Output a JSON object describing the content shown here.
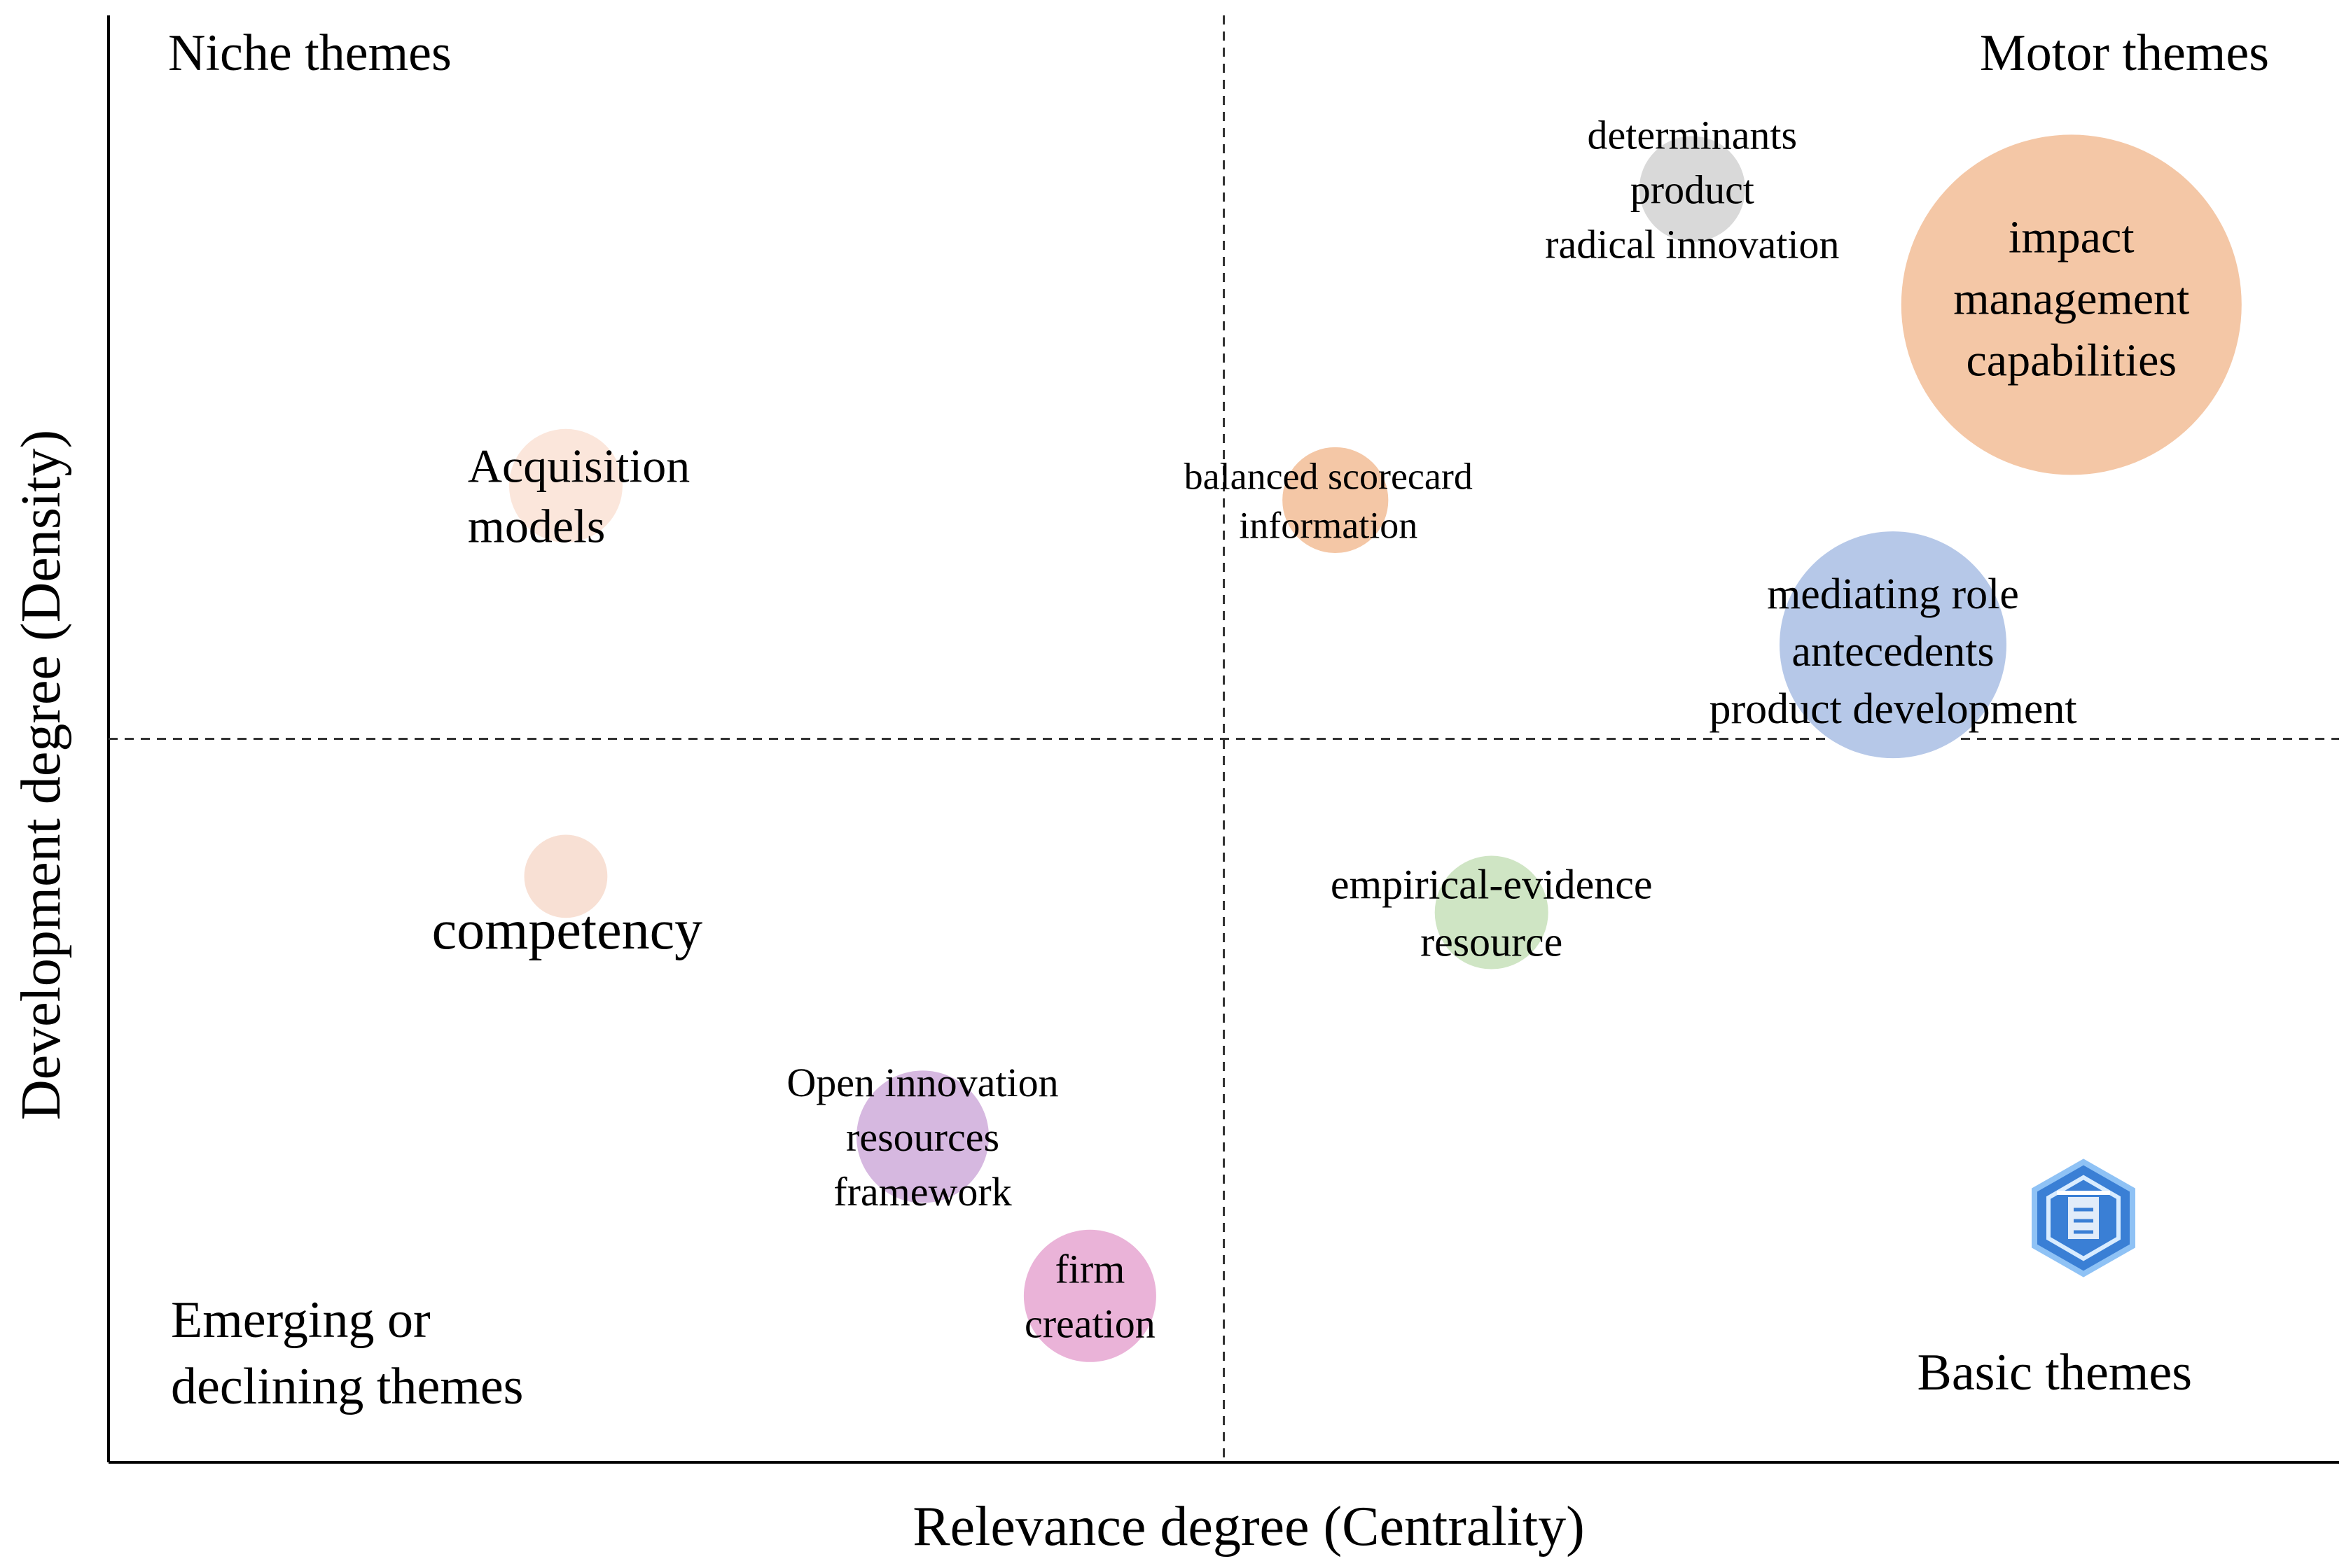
{
  "chart_data": {
    "type": "scatter",
    "title": "",
    "xlabel": "Relevance degree (Centrality)",
    "ylabel": "Development degree (Density)",
    "xlim": [
      0,
      100
    ],
    "ylim": [
      0,
      100
    ],
    "quadrant_divider": {
      "x": 50,
      "y": 50
    },
    "quadrants": [
      {
        "name": "Niche themes",
        "placement": "top-left"
      },
      {
        "name": "Motor themes",
        "placement": "top-right"
      },
      {
        "name": "Emerging or declining themes",
        "lines": [
          "Emerging or",
          "declining themes"
        ],
        "placement": "bottom-left"
      },
      {
        "name": "Basic themes",
        "placement": "bottom-right"
      }
    ],
    "clusters": [
      {
        "id": "determinants",
        "labels": [
          "determinants",
          "product",
          "radical innovation"
        ],
        "x": 71,
        "y": 88,
        "size": 2.8,
        "color": "#d9d9d9"
      },
      {
        "id": "impact",
        "labels": [
          "impact",
          "management",
          "capabilities"
        ],
        "x": 88,
        "y": 80,
        "size": 9,
        "color": "#f4c7a6"
      },
      {
        "id": "acquisition",
        "labels": [
          "Acquisition",
          "models"
        ],
        "x": 20.5,
        "y": 67.5,
        "size": 3,
        "color": "#fbe6db"
      },
      {
        "id": "balanced",
        "labels": [
          "balanced scorecard",
          "information"
        ],
        "x": 55,
        "y": 66.5,
        "size": 2.8,
        "color": "#f4c7a6"
      },
      {
        "id": "mediating",
        "labels": [
          "mediating role",
          "antecedents",
          "product development"
        ],
        "x": 80,
        "y": 56.5,
        "size": 6,
        "color": "#b6c8e8"
      },
      {
        "id": "competency",
        "labels": [
          "competency"
        ],
        "x": 20.5,
        "y": 40.5,
        "size": 2.2,
        "color": "#f8e0d4"
      },
      {
        "id": "empirical",
        "labels": [
          "empirical-evidence",
          "resource"
        ],
        "x": 62,
        "y": 38,
        "size": 3,
        "color": "#cfe5c4"
      },
      {
        "id": "open-innovation",
        "labels": [
          "Open innovation",
          "resources",
          "framework"
        ],
        "x": 36.5,
        "y": 22.5,
        "size": 3.5,
        "color": "#d6b8e0"
      },
      {
        "id": "firm",
        "labels": [
          "firm",
          "creation"
        ],
        "x": 44,
        "y": 11.5,
        "size": 3.5,
        "color": "#eab3d8"
      }
    ]
  },
  "watermark": {
    "icon": "shield-logo-icon",
    "color": "#3a7fd5"
  }
}
